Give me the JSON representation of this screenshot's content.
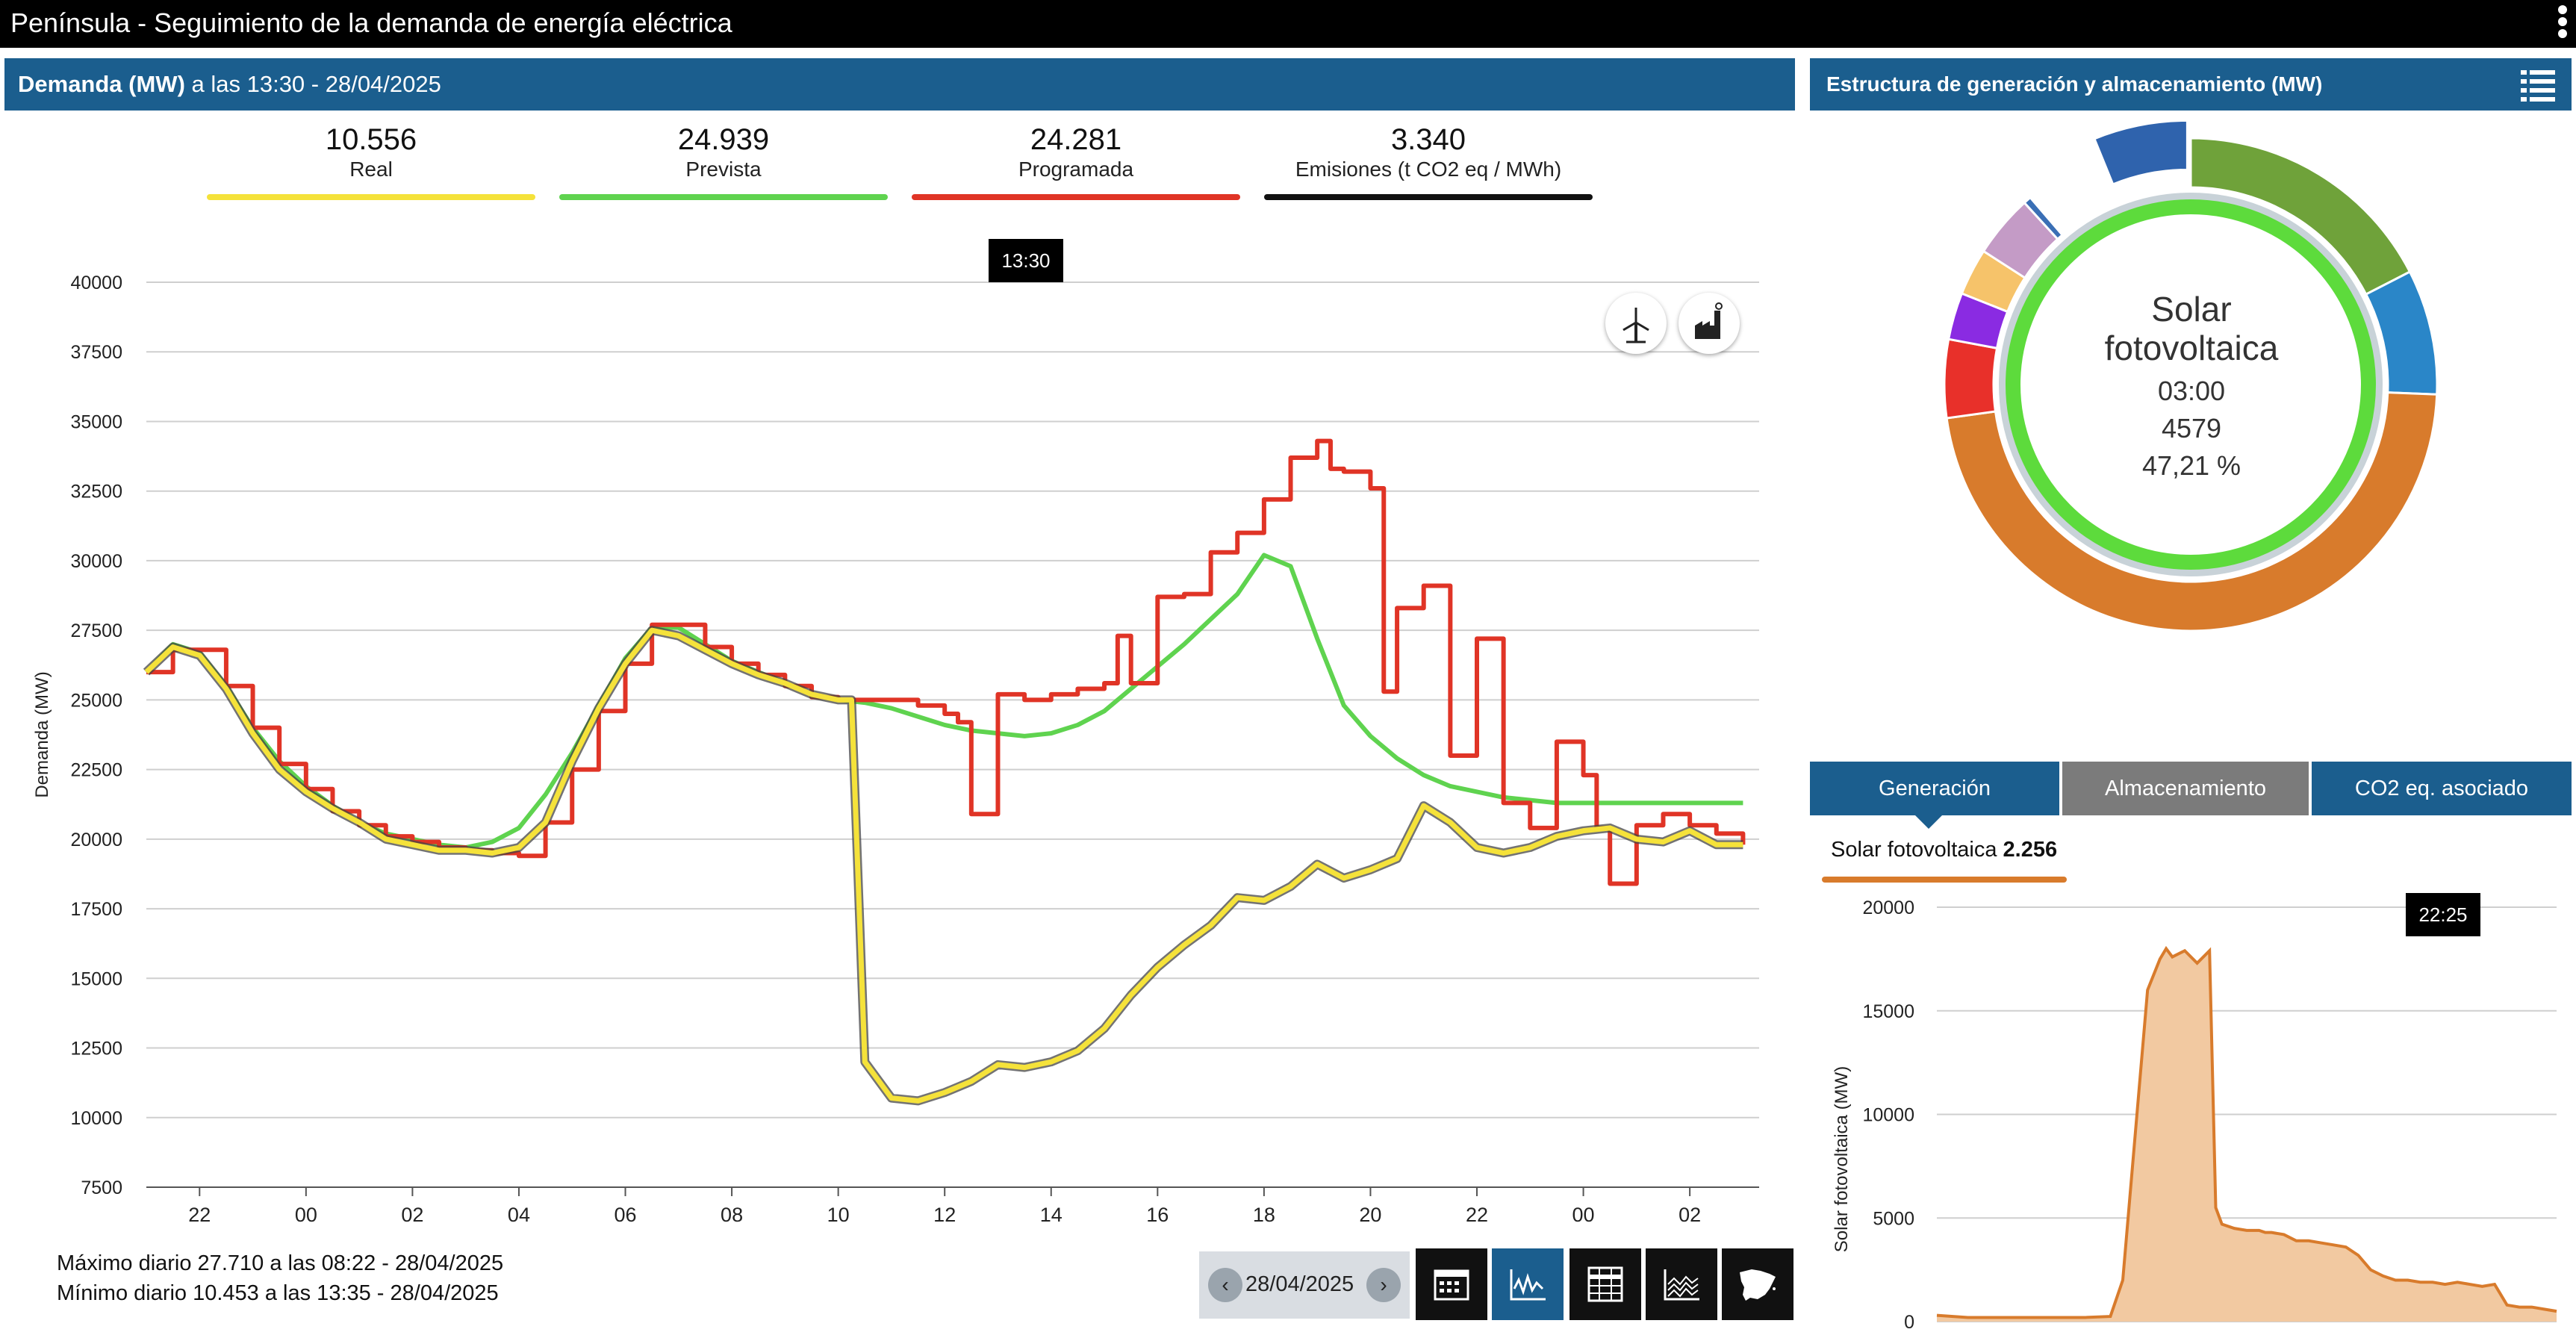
{
  "topbar": {
    "title": "Península  -  Seguimiento de la demanda de energía eléctrica"
  },
  "demand_header": {
    "title": "Demanda (MW)",
    "subtitle": " a las 13:30 - 28/04/2025"
  },
  "kpis": [
    {
      "value": "10.556",
      "label": "Real",
      "color": "#f5e23a"
    },
    {
      "value": "24.939",
      "label": "Prevista",
      "color": "#5fd34f"
    },
    {
      "value": "24.281",
      "label": "Programada",
      "color": "#e03426"
    },
    {
      "value": "3.340",
      "label": "Emisiones (t CO2 eq / MWh)",
      "color": "#111111"
    }
  ],
  "main_tooltip": "13:30",
  "footer": {
    "max": "Máximo diario 27.710 a las 08:22 - 28/04/2025",
    "min": "Mínimo diario 10.453 a las 13:35 - 28/04/2025"
  },
  "toolbar": {
    "date": "28/04/2025",
    "prev_icon": "chevron-left-icon",
    "next_icon": "chevron-right-icon",
    "buttons": [
      "calendar-icon",
      "line-chart-icon",
      "table-icon",
      "area-chart-icon",
      "spain-map-icon"
    ]
  },
  "map_icons": [
    "wind-turbine-icon",
    "factory-icon"
  ],
  "structure_header": {
    "title": "Estructura de generación y almacenamiento (MW)"
  },
  "donut": {
    "name_line1": "Solar",
    "name_line2": "fotovoltaica",
    "time": "03:00",
    "value": "4579",
    "percent": "47,21 %",
    "segments": [
      {
        "color": "#6fa23a",
        "value": 17
      },
      {
        "color": "#2a86c8",
        "value": 8
      },
      {
        "color": "#d87b2c",
        "value": 46
      },
      {
        "color": "#e8302a",
        "value": 5
      },
      {
        "color": "#8a2be2",
        "value": 3
      },
      {
        "color": "#f6c36a",
        "value": 3
      },
      {
        "color": "#c49bc6",
        "value": 4
      },
      {
        "color": "#3a6fb5",
        "value": 0.5
      },
      {
        "color": "#ffffff",
        "value": 5
      },
      {
        "color": "#2f63ad",
        "value": 6,
        "exploded": true
      }
    ]
  },
  "tabs": [
    {
      "label": "Generación",
      "color": "#1b5e8e"
    },
    {
      "label": "Almacenamiento",
      "color": "#7b7b7b"
    },
    {
      "label": "CO2 eq. asociado",
      "color": "#1b5e8e"
    }
  ],
  "gen_series": {
    "name": "Solar fotovoltaica",
    "value": "2.256"
  },
  "small_tooltip": "22:25",
  "chart_data": [
    {
      "type": "line",
      "ylabel": "Demanda (MW)",
      "ylim": [
        7500,
        40000
      ],
      "yticks": [
        7500,
        10000,
        12500,
        15000,
        17500,
        20000,
        22500,
        25000,
        27500,
        30000,
        32500,
        35000,
        37500,
        40000
      ],
      "ytick_labels": [
        "7500",
        "10000",
        "12500",
        "15000",
        "17500",
        "20000",
        "22500",
        "25000",
        "27500",
        "30000",
        "32500",
        "35000",
        "37500",
        "40000"
      ],
      "xtick_labels": [
        "22",
        "00",
        "02",
        "04",
        "06",
        "08",
        "10",
        "12",
        "14",
        "16",
        "18",
        "20",
        "22",
        "00",
        "02"
      ],
      "x_unit": "hours from 21:00 on 27/04",
      "series": [
        {
          "name": "Prevista",
          "color": "#5fd34f",
          "x": [
            0,
            0.5,
            1,
            1.5,
            2,
            2.5,
            3,
            3.5,
            4,
            4.5,
            5,
            5.5,
            6,
            6.5,
            7,
            7.5,
            8,
            8.5,
            9,
            9.5,
            10,
            10.5,
            11,
            11.5,
            12,
            12.5,
            13,
            13.5,
            14,
            14.5,
            15,
            15.5,
            16,
            16.5,
            17,
            17.5,
            18,
            18.5,
            19,
            19.5,
            20,
            20.5,
            21,
            21.5,
            22,
            22.5,
            23,
            23.5,
            24,
            24.5,
            25,
            25.5,
            26,
            26.5,
            27,
            27.5,
            28,
            28.5,
            29,
            29.5,
            30
          ],
          "y": [
            26000,
            27000,
            26700,
            25500,
            24000,
            22800,
            21900,
            21200,
            20600,
            20200,
            20000,
            19800,
            19700,
            19900,
            20400,
            21600,
            23100,
            24800,
            26500,
            27600,
            27600,
            27000,
            26400,
            26000,
            25600,
            25200,
            25000,
            24900,
            24700,
            24400,
            24100,
            23900,
            23800,
            23700,
            23800,
            24100,
            24600,
            25400,
            26200,
            27000,
            27900,
            28800,
            30200,
            29800,
            27200,
            24800,
            23700,
            22900,
            22300,
            21900,
            21700,
            21500,
            21400,
            21300,
            21300,
            21300,
            21300,
            21300,
            21300,
            21300,
            21300
          ]
        },
        {
          "name": "Programada",
          "color": "#e03426",
          "step": true,
          "x": [
            0,
            0.5,
            1,
            1.5,
            2,
            2.5,
            3,
            3.5,
            4,
            4.5,
            5,
            5.5,
            6,
            6.5,
            7,
            7.5,
            8,
            8.5,
            9,
            9.5,
            10,
            10.5,
            11,
            11.5,
            12,
            12.5,
            13,
            13.5,
            14,
            14.5,
            15,
            15.25,
            15.5,
            16,
            16.5,
            17,
            17.5,
            18,
            18.25,
            18.5,
            19,
            19.5,
            20,
            20.5,
            21,
            21.5,
            22,
            22.25,
            22.5,
            23,
            23.25,
            23.5,
            24,
            24.5,
            25,
            25.5,
            26,
            26.5,
            27,
            27.25,
            27.5,
            28,
            28.5,
            29,
            29.5,
            30
          ],
          "y": [
            26000,
            26800,
            26800,
            25500,
            24000,
            22700,
            21800,
            21000,
            20500,
            20100,
            19900,
            19700,
            19600,
            19500,
            19400,
            20600,
            22500,
            24600,
            26300,
            27700,
            27700,
            26900,
            26300,
            25900,
            25500,
            25100,
            25000,
            25000,
            25000,
            24800,
            24500,
            24200,
            20900,
            25200,
            25000,
            25200,
            25400,
            25600,
            27300,
            25600,
            28700,
            28800,
            30300,
            31000,
            32200,
            33700,
            34300,
            33300,
            33200,
            32600,
            25300,
            28300,
            29100,
            23000,
            27200,
            21300,
            20400,
            23500,
            22300,
            20400,
            18400,
            20500,
            20900,
            20500,
            20200,
            19800
          ]
        },
        {
          "name": "Real",
          "color": "#f5e23a",
          "x": [
            0,
            0.5,
            1,
            1.5,
            2,
            2.5,
            3,
            3.5,
            4,
            4.5,
            5,
            5.5,
            6,
            6.5,
            7,
            7.5,
            8,
            8.5,
            9,
            9.5,
            10,
            10.5,
            11,
            11.5,
            12,
            12.5,
            13,
            13.25,
            13.5,
            14,
            14.5,
            15,
            15.5,
            16,
            16.5,
            17,
            17.5,
            18,
            18.5,
            19,
            19.5,
            20,
            20.5,
            21,
            21.5,
            22,
            22.5,
            23,
            23.5,
            24,
            24.5,
            25,
            25.5,
            26,
            26.5,
            27,
            27.5,
            28,
            28.5,
            29,
            29.5,
            30
          ],
          "y": [
            26000,
            26900,
            26600,
            25400,
            23800,
            22500,
            21700,
            21100,
            20600,
            20000,
            19800,
            19600,
            19600,
            19500,
            19700,
            20600,
            22800,
            24700,
            26300,
            27500,
            27300,
            26800,
            26300,
            25900,
            25600,
            25200,
            25000,
            25000,
            12000,
            10700,
            10600,
            10900,
            11300,
            11900,
            11800,
            12000,
            12400,
            13200,
            14400,
            15400,
            16200,
            16900,
            17900,
            17800,
            18300,
            19100,
            18600,
            18900,
            19300,
            21200,
            20600,
            19700,
            19500,
            19700,
            20100,
            20300,
            20400,
            20000,
            19900,
            20300,
            19800,
            19800
          ]
        }
      ]
    },
    {
      "type": "area",
      "ylabel": "Solar fotovoltaica (MW)",
      "ylim": [
        0,
        20000
      ],
      "yticks": [
        0,
        5000,
        10000,
        15000,
        20000
      ],
      "ytick_labels": [
        "0",
        "5000",
        "10000",
        "15000",
        "20000"
      ],
      "series": [
        {
          "name": "Solar fotovoltaica",
          "color": "#d87b2c",
          "x": [
            0,
            5,
            10,
            15,
            20,
            24,
            28,
            30,
            32,
            34,
            36,
            37,
            38,
            40,
            42,
            44,
            45,
            46,
            48,
            50,
            52,
            53,
            54,
            56,
            58,
            60,
            62,
            64,
            66,
            68,
            70,
            72,
            74,
            76,
            78,
            80,
            82,
            84,
            86,
            88,
            90,
            92,
            94,
            96,
            98,
            100
          ],
          "y": [
            300,
            200,
            200,
            200,
            200,
            200,
            250,
            2000,
            9000,
            16000,
            17500,
            18000,
            17600,
            17900,
            17300,
            17900,
            5500,
            4700,
            4500,
            4400,
            4400,
            4300,
            4300,
            4200,
            3900,
            3900,
            3800,
            3700,
            3600,
            3200,
            2500,
            2200,
            2000,
            2000,
            1900,
            1900,
            1800,
            1900,
            1800,
            1700,
            1800,
            800,
            700,
            700,
            600,
            500
          ]
        }
      ]
    }
  ]
}
